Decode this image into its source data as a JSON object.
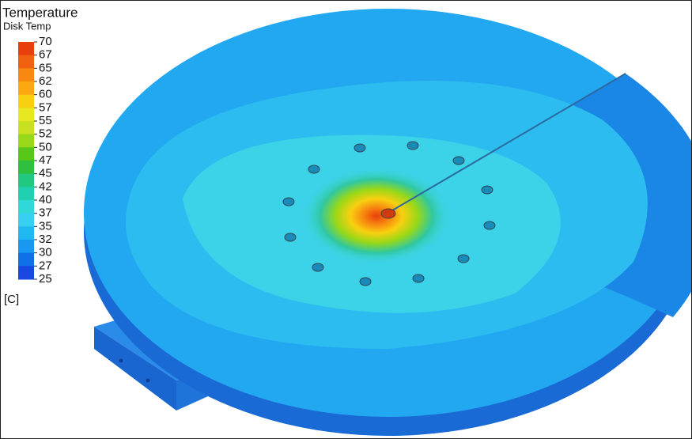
{
  "legend": {
    "title": "Temperature",
    "subtitle": "Disk Temp",
    "unit": "[C]",
    "levels": [
      70,
      67,
      65,
      62,
      60,
      57,
      55,
      52,
      50,
      47,
      45,
      42,
      40,
      37,
      35,
      32,
      30,
      27,
      25
    ],
    "colors": [
      "#e8400c",
      "#f06010",
      "#f88810",
      "#fca810",
      "#f8d010",
      "#e8e820",
      "#c8e020",
      "#98d818",
      "#58c818",
      "#30c040",
      "#20c880",
      "#20d0b0",
      "#30d8d8",
      "#38d0f0",
      "#20b8f0",
      "#1898f0",
      "#1070e8",
      "#1848e0"
    ]
  }
}
